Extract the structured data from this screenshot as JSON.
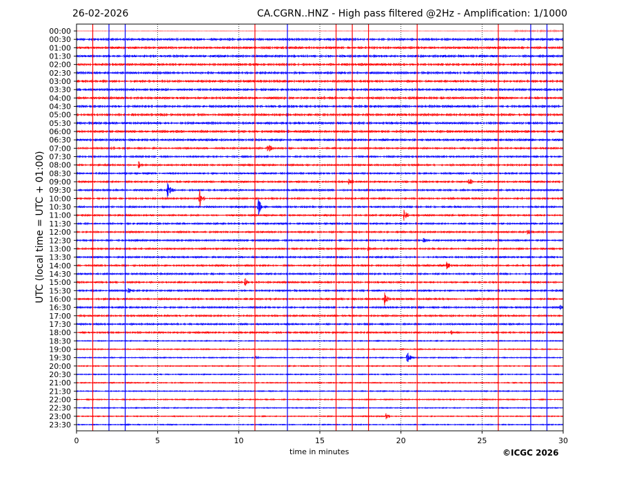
{
  "header": {
    "date": "26-02-2026",
    "title": "CA.CGRN..HNZ - High pass filtered @2Hz - Amplification: 1/1000"
  },
  "footer": {
    "copyright": "©ICGC 2026"
  },
  "chart_data": {
    "type": "line",
    "title": "CA.CGRN..HNZ - High pass filtered @2Hz - Amplification: 1/1000",
    "xlabel": "time in minutes",
    "ylabel": "UTC (local time = UTC + 01:00)",
    "xlim": [
      0,
      30
    ],
    "xticks": [
      "0",
      "5",
      "10",
      "15",
      "20",
      "25",
      "30"
    ],
    "grid": "dotted vertical at 5-minute intervals",
    "row_labels": [
      "00:00",
      "00:30",
      "01:00",
      "01:30",
      "02:00",
      "02:30",
      "03:00",
      "03:30",
      "04:00",
      "04:30",
      "05:00",
      "05:30",
      "06:00",
      "06:30",
      "07:00",
      "07:30",
      "08:00",
      "08:30",
      "09:00",
      "09:30",
      "10:00",
      "10:30",
      "11:00",
      "11:30",
      "12:00",
      "12:30",
      "13:00",
      "13:30",
      "14:00",
      "14:30",
      "15:00",
      "15:30",
      "16:00",
      "16:30",
      "17:00",
      "17:30",
      "18:00",
      "18:30",
      "19:00",
      "19:30",
      "20:00",
      "20:30",
      "21:00",
      "21:30",
      "22:00",
      "22:30",
      "23:00",
      "23:30"
    ],
    "series_colors": {
      "hour": "#ff0000",
      "half_hour": "#0000ff"
    },
    "vertical_marks": [
      {
        "minute": 1,
        "color": "#ff0000"
      },
      {
        "minute": 2,
        "color": "#0000ff"
      },
      {
        "minute": 3,
        "color": "#0000ff"
      },
      {
        "minute": 11,
        "color": "#ff0000"
      },
      {
        "minute": 13,
        "color": "#0000ff"
      },
      {
        "minute": 16,
        "color": "#ff0000"
      },
      {
        "minute": 17,
        "color": "#ff0000"
      },
      {
        "minute": 18,
        "color": "#ff0000"
      },
      {
        "minute": 21,
        "color": "#ff0000"
      },
      {
        "minute": 26,
        "color": "#ff0000"
      },
      {
        "minute": 28,
        "color": "#0000ff"
      },
      {
        "minute": 29,
        "color": "#0000ff"
      }
    ],
    "events": [
      {
        "row": 14,
        "minute": 2.2,
        "amp": 3
      },
      {
        "row": 14,
        "minute": 11.8,
        "amp": 8
      },
      {
        "row": 16,
        "minute": 3.8,
        "amp": 6
      },
      {
        "row": 18,
        "minute": 16.8,
        "amp": 8
      },
      {
        "row": 18,
        "minute": 24.2,
        "amp": 6
      },
      {
        "row": 19,
        "minute": 5.6,
        "amp": 14
      },
      {
        "row": 20,
        "minute": 7.6,
        "amp": 14
      },
      {
        "row": 21,
        "minute": 11.2,
        "amp": 16
      },
      {
        "row": 22,
        "minute": 20.2,
        "amp": 8
      },
      {
        "row": 24,
        "minute": 27.8,
        "amp": 5
      },
      {
        "row": 25,
        "minute": 21.4,
        "amp": 4
      },
      {
        "row": 26,
        "minute": 18.0,
        "amp": 4
      },
      {
        "row": 28,
        "minute": 22.8,
        "amp": 10
      },
      {
        "row": 30,
        "minute": 10.4,
        "amp": 6
      },
      {
        "row": 31,
        "minute": 3.2,
        "amp": 4
      },
      {
        "row": 32,
        "minute": 19.0,
        "amp": 10
      },
      {
        "row": 33,
        "minute": 29.8,
        "amp": 4
      },
      {
        "row": 36,
        "minute": 23.1,
        "amp": 4
      },
      {
        "row": 39,
        "minute": 20.4,
        "amp": 8
      },
      {
        "row": 39,
        "minute": 11.0,
        "amp": 4
      },
      {
        "row": 46,
        "minute": 19.1,
        "amp": 5
      }
    ]
  }
}
